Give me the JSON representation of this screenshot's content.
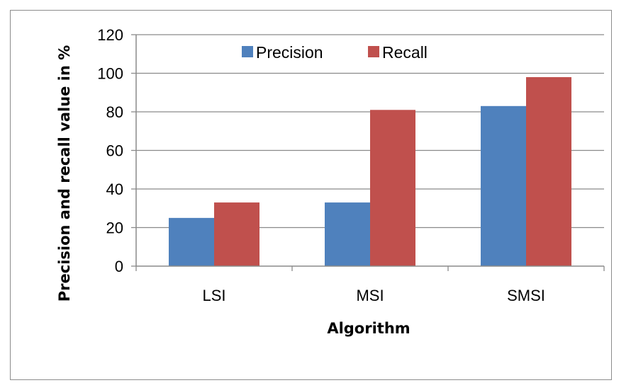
{
  "chart_data": {
    "type": "bar",
    "categories": [
      "LSI",
      "MSI",
      "SMSI"
    ],
    "series": [
      {
        "name": "Precision",
        "values": [
          25,
          33,
          83
        ],
        "color": "#4f81bd"
      },
      {
        "name": "Recall",
        "values": [
          33,
          81,
          98
        ],
        "color": "#c0504d"
      }
    ],
    "xlabel": "Algorithm",
    "ylabel": "Precision and recall value in %",
    "ylim": [
      0,
      120
    ],
    "yticks": [
      0,
      20,
      40,
      60,
      80,
      100,
      120
    ],
    "grid": true,
    "legend": "top-center"
  }
}
